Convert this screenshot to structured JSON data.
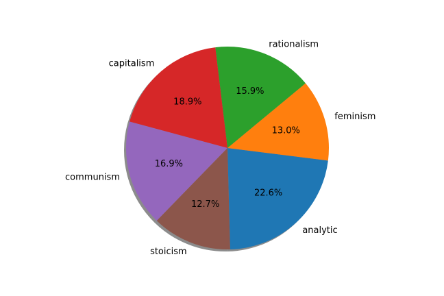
{
  "chart_data": {
    "type": "pie",
    "title": "",
    "shadow": true,
    "counterclock": true,
    "slices": [
      {
        "label": "analytic",
        "value": 22.6,
        "pct_label": "22.6%",
        "color": "#1f77b4"
      },
      {
        "label": "feminism",
        "value": 13.0,
        "pct_label": "13.0%",
        "color": "#ff7f0e"
      },
      {
        "label": "rationalism",
        "value": 15.9,
        "pct_label": "15.9%",
        "color": "#2ca02c"
      },
      {
        "label": "capitalism",
        "value": 18.9,
        "pct_label": "18.9%",
        "color": "#d62728"
      },
      {
        "label": "communism",
        "value": 16.9,
        "pct_label": "16.9%",
        "color": "#9467bd"
      },
      {
        "label": "stoicism",
        "value": 12.7,
        "pct_label": "12.7%",
        "color": "#8c564b"
      }
    ]
  }
}
